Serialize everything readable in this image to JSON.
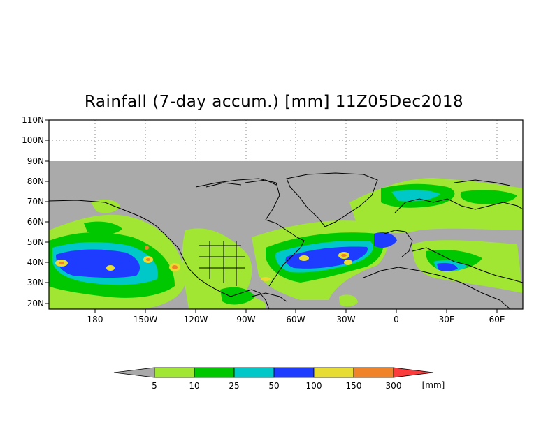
{
  "title": "Rainfall (7-day accum.) [mm] 11Z05Dec2018",
  "lat_ticks": [
    "110N",
    "100N",
    "90N",
    "80N",
    "70N",
    "60N",
    "50N",
    "40N",
    "30N",
    "20N"
  ],
  "lon_ticks": [
    "180",
    "150W",
    "120W",
    "90W",
    "60W",
    "30W",
    "0",
    "30E",
    "60E"
  ],
  "legend": {
    "labels": [
      "5",
      "10",
      "25",
      "50",
      "100",
      "150",
      "300"
    ],
    "unit": "[mm]",
    "colors": [
      "#a0e632",
      "#00c800",
      "#00c8c8",
      "#1e3cff",
      "#e6dc32",
      "#f08228",
      "#fa3c3c"
    ],
    "under_color": "#a9a9a9"
  },
  "colors": {
    "land_ocean": "#aaaaaa",
    "coast": "#000000",
    "light_green": "#a0e632",
    "green": "#00c800",
    "cyan": "#00c8c8",
    "blue": "#1e3cff",
    "yellow": "#e6dc32",
    "orange": "#f08228"
  }
}
